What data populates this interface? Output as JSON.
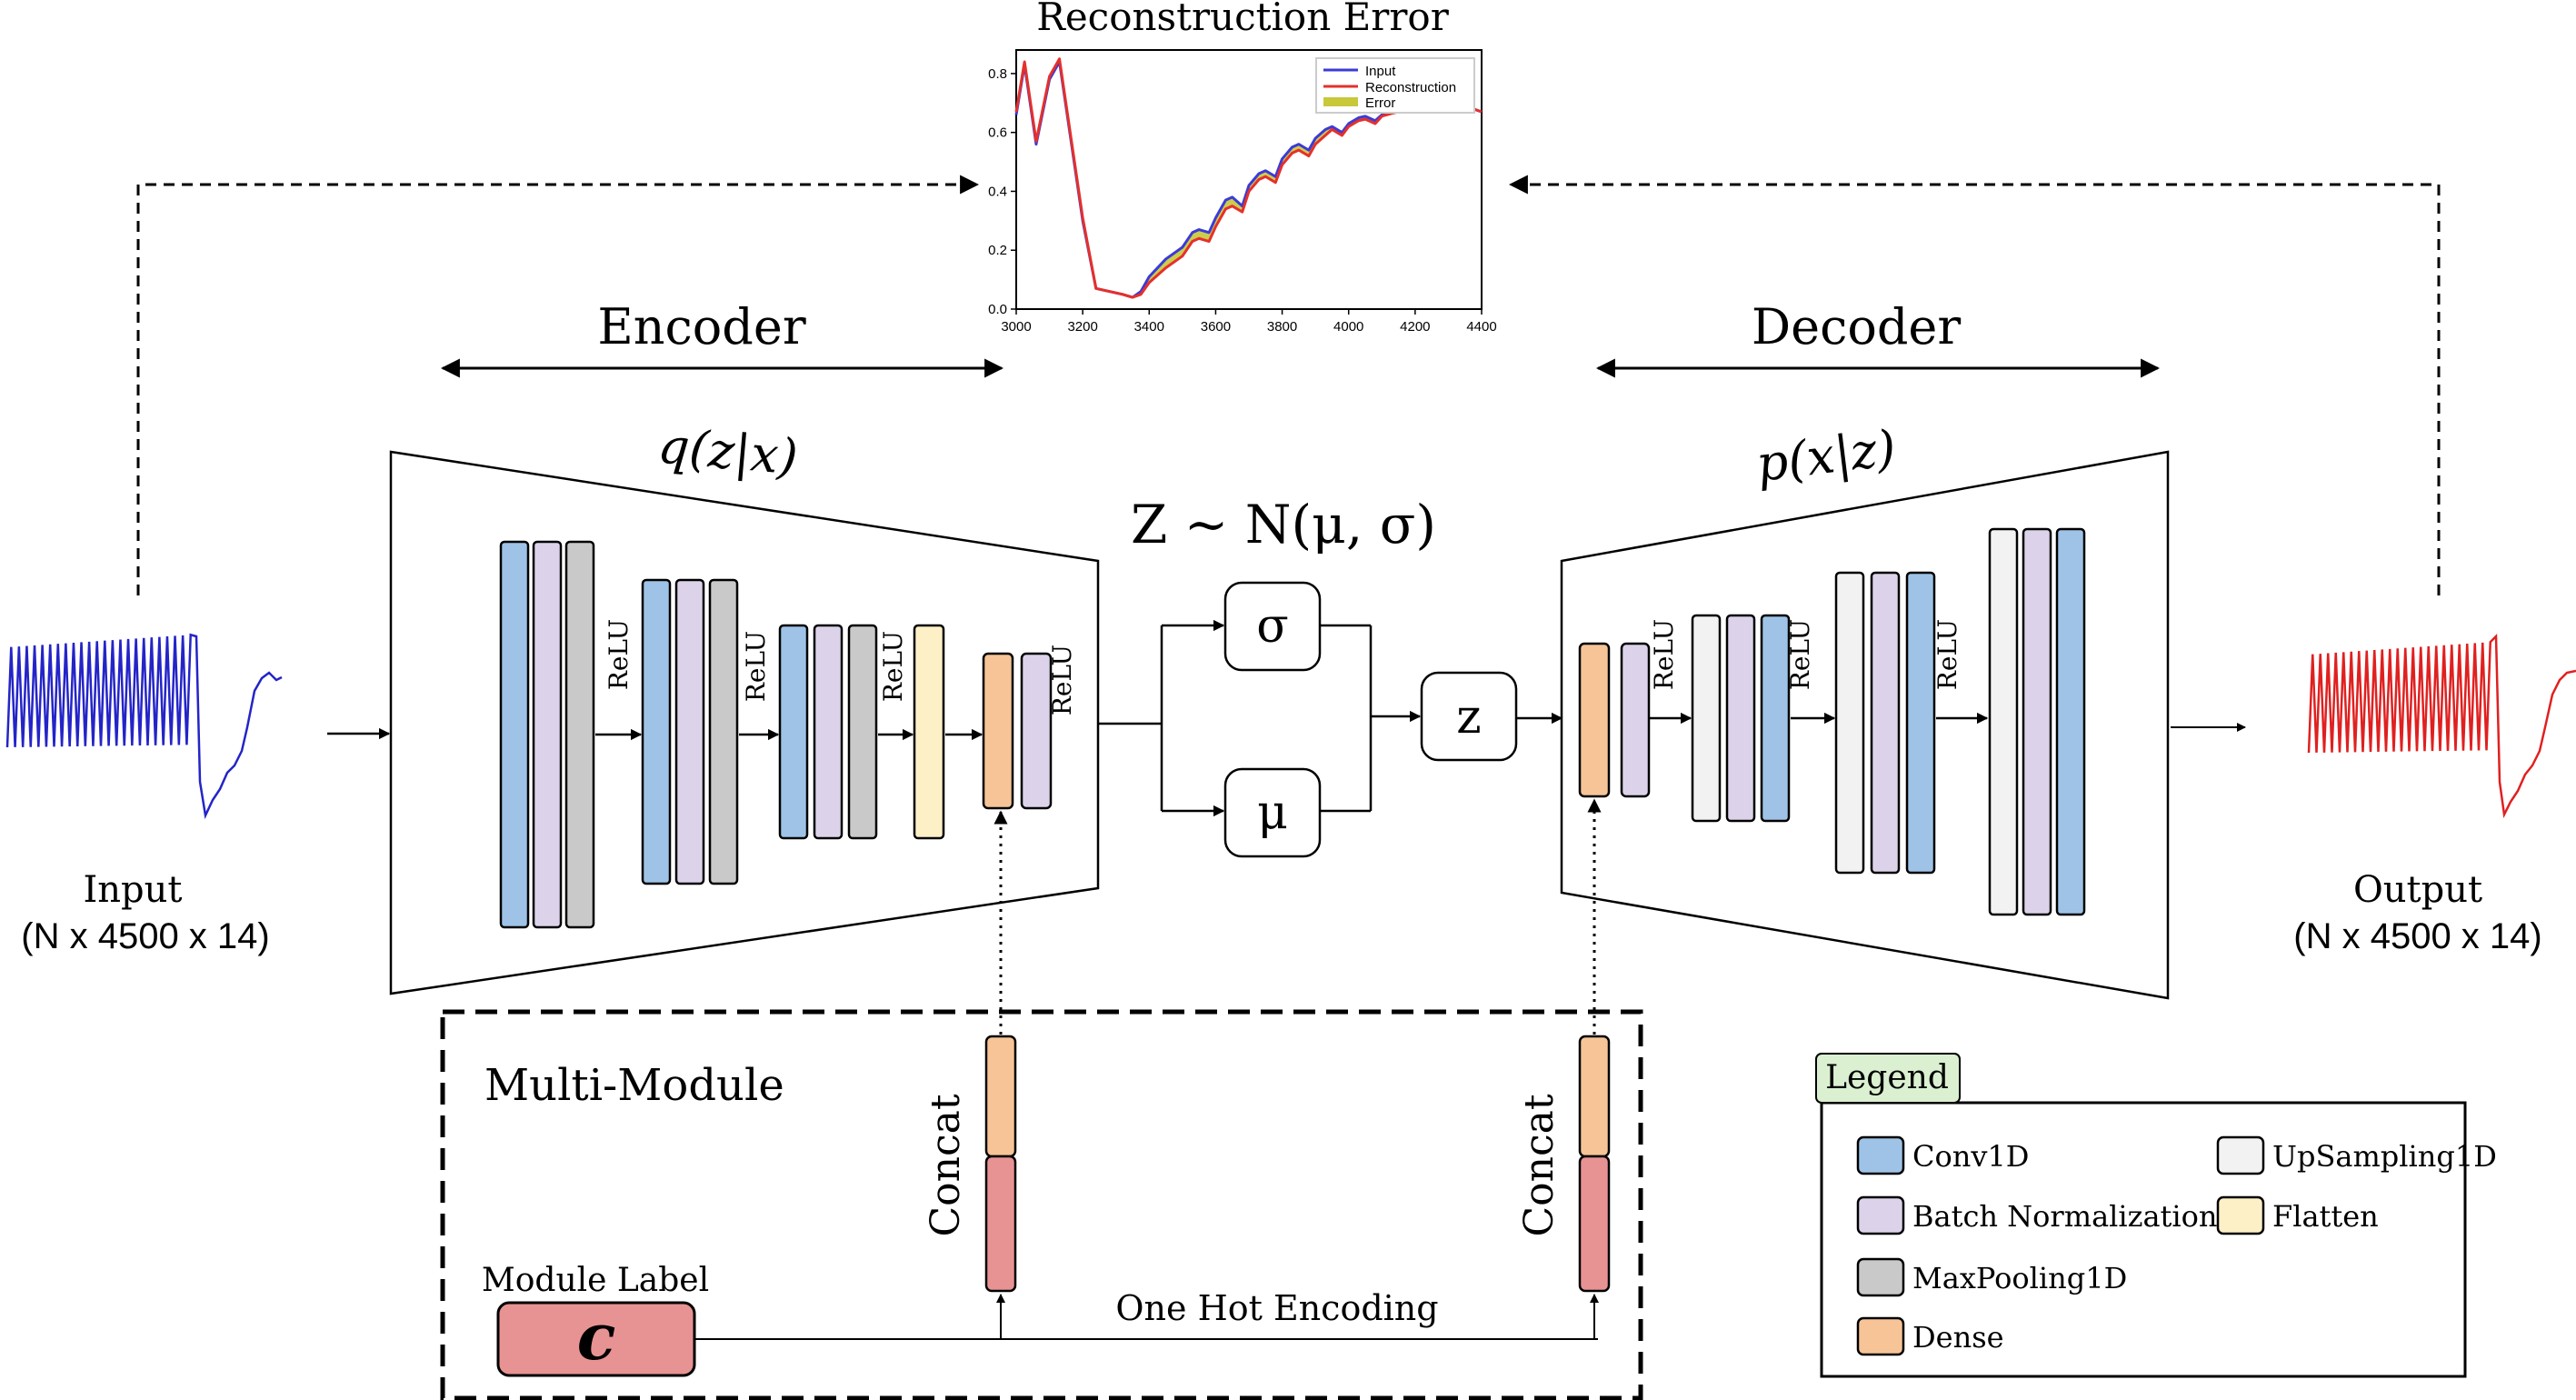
{
  "top_chart": {
    "title": "Reconstruction Error",
    "legend": [
      "Input",
      "Reconstruction",
      "Error"
    ],
    "colors": {
      "input": "#3b3bd6",
      "reconstruction": "#e5302b",
      "error": "#c8c83a"
    }
  },
  "chart_data": {
    "type": "line",
    "title": "Reconstruction Error",
    "xlabel": "",
    "ylabel": "",
    "xlim": [
      3000,
      4400
    ],
    "ylim": [
      0,
      0.88
    ],
    "x_ticks": [
      "3000",
      "3200",
      "3400",
      "3600",
      "3800",
      "4000",
      "4200",
      "4400"
    ],
    "y_ticks": [
      "0.0",
      "0.2",
      "0.4",
      "0.6",
      "0.8"
    ],
    "series": [
      {
        "name": "Input",
        "x": [
          3000,
          3025,
          3060,
          3100,
          3130,
          3165,
          3200,
          3240,
          3280,
          3320,
          3350,
          3375,
          3400,
          3450,
          3500,
          3530,
          3550,
          3580,
          3600,
          3630,
          3650,
          3680,
          3700,
          3730,
          3750,
          3780,
          3800,
          3830,
          3850,
          3880,
          3900,
          3930,
          3950,
          3980,
          4000,
          4030,
          4050,
          4080,
          4100,
          4130,
          4150,
          4200,
          4250,
          4300,
          4350,
          4400
        ],
        "values": [
          0.66,
          0.83,
          0.56,
          0.78,
          0.84,
          0.57,
          0.3,
          0.07,
          0.06,
          0.05,
          0.04,
          0.06,
          0.11,
          0.17,
          0.21,
          0.26,
          0.27,
          0.26,
          0.31,
          0.37,
          0.38,
          0.35,
          0.42,
          0.46,
          0.47,
          0.45,
          0.51,
          0.55,
          0.56,
          0.54,
          0.58,
          0.61,
          0.62,
          0.6,
          0.63,
          0.65,
          0.655,
          0.64,
          0.66,
          0.67,
          0.675,
          0.68,
          0.68,
          0.685,
          0.69,
          0.67
        ]
      },
      {
        "name": "Reconstruction",
        "x": [
          3000,
          3025,
          3060,
          3100,
          3130,
          3165,
          3200,
          3240,
          3280,
          3320,
          3350,
          3375,
          3400,
          3450,
          3500,
          3530,
          3550,
          3580,
          3600,
          3630,
          3650,
          3680,
          3700,
          3730,
          3750,
          3780,
          3800,
          3830,
          3850,
          3880,
          3900,
          3930,
          3950,
          3980,
          4000,
          4030,
          4050,
          4080,
          4100,
          4130,
          4150,
          4200,
          4250,
          4300,
          4350,
          4400
        ],
        "values": [
          0.67,
          0.84,
          0.57,
          0.79,
          0.85,
          0.58,
          0.31,
          0.07,
          0.06,
          0.05,
          0.04,
          0.05,
          0.09,
          0.14,
          0.18,
          0.23,
          0.24,
          0.23,
          0.28,
          0.34,
          0.35,
          0.33,
          0.4,
          0.44,
          0.45,
          0.43,
          0.49,
          0.53,
          0.54,
          0.52,
          0.56,
          0.59,
          0.61,
          0.59,
          0.62,
          0.64,
          0.645,
          0.63,
          0.655,
          0.665,
          0.67,
          0.675,
          0.68,
          0.685,
          0.69,
          0.67
        ]
      }
    ]
  },
  "sections": {
    "encoder": "Encoder",
    "decoder": "Decoder"
  },
  "encoder": {
    "label": "q(z|x)"
  },
  "decoder": {
    "label": "p(x|z)"
  },
  "latent": {
    "formula": "Z ~ N(μ, σ)",
    "sigma": "σ",
    "mu": "μ",
    "z": "z"
  },
  "activation": {
    "label": "ReLU"
  },
  "input": {
    "title": "Input",
    "shape": "(N x 4500 x 14)",
    "color": "#2424c8"
  },
  "output": {
    "title": "Output",
    "shape": "(N x 4500 x 14)",
    "color": "#e02020"
  },
  "multi_module": {
    "title": "Multi-Module",
    "concat": "Concat",
    "module_label": "Module Label",
    "c_symbol": "c",
    "one_hot": "One Hot Encoding"
  },
  "legend": {
    "title": "Legend",
    "items": [
      {
        "label": "Conv1D",
        "color": "#9ec3e6"
      },
      {
        "label": "UpSampling1D",
        "color": "#f2f2f2"
      },
      {
        "label": "Batch Normalization",
        "color": "#dcd3ea"
      },
      {
        "label": "Flatten",
        "color": "#fdefc6"
      },
      {
        "label": "MaxPooling1D",
        "color": "#c9c9c9"
      },
      {
        "label": "Dense",
        "color": "#f6c497"
      }
    ]
  },
  "colors": {
    "conv": "#9ec3e6",
    "bn": "#dcd3ea",
    "pool": "#c9c9c9",
    "flatten": "#fdefc6",
    "dense": "#f6c497",
    "upsample": "#f2f2f2",
    "onehot": "#e89393",
    "legend_title_bg": "#daf0d0"
  }
}
